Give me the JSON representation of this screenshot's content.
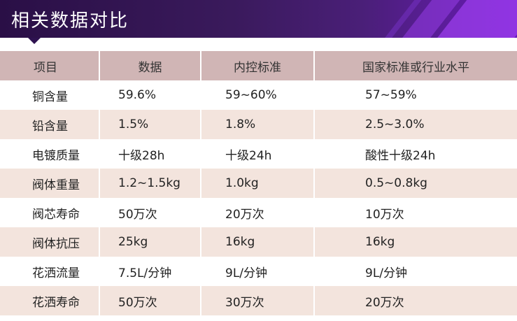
{
  "banner": {
    "title": "相关数据对比"
  },
  "table": {
    "headers": [
      "项目",
      "数据",
      "内控标准",
      "国家标准或行业水平"
    ],
    "rows": [
      [
        "铜含量",
        "59.6%",
        "59~60%",
        "57~59%"
      ],
      [
        "铅含量",
        "1.5%",
        "1.8%",
        "2.5~3.0%"
      ],
      [
        "电镀质量",
        "十级28h",
        "十级24h",
        "酸性十级24h"
      ],
      [
        "阀体重量",
        "1.2~1.5kg",
        "1.0kg",
        "0.5~0.8kg"
      ],
      [
        "阀芯寿命",
        "50万次",
        "20万次",
        "10万次"
      ],
      [
        "阀体抗压",
        "25kg",
        "16kg",
        "16kg"
      ],
      [
        "花洒流量",
        "7.5L/分钟",
        "9L/分钟",
        "9L/分钟"
      ],
      [
        "花洒寿命",
        "50万次",
        "30万次",
        "20万次"
      ]
    ]
  },
  "colors": {
    "banner_dark": "#2a0f46",
    "banner_accent": "#6a1bb8",
    "header_bg": "#d0b5b5",
    "stripe_bg": "#f3e4dd"
  }
}
